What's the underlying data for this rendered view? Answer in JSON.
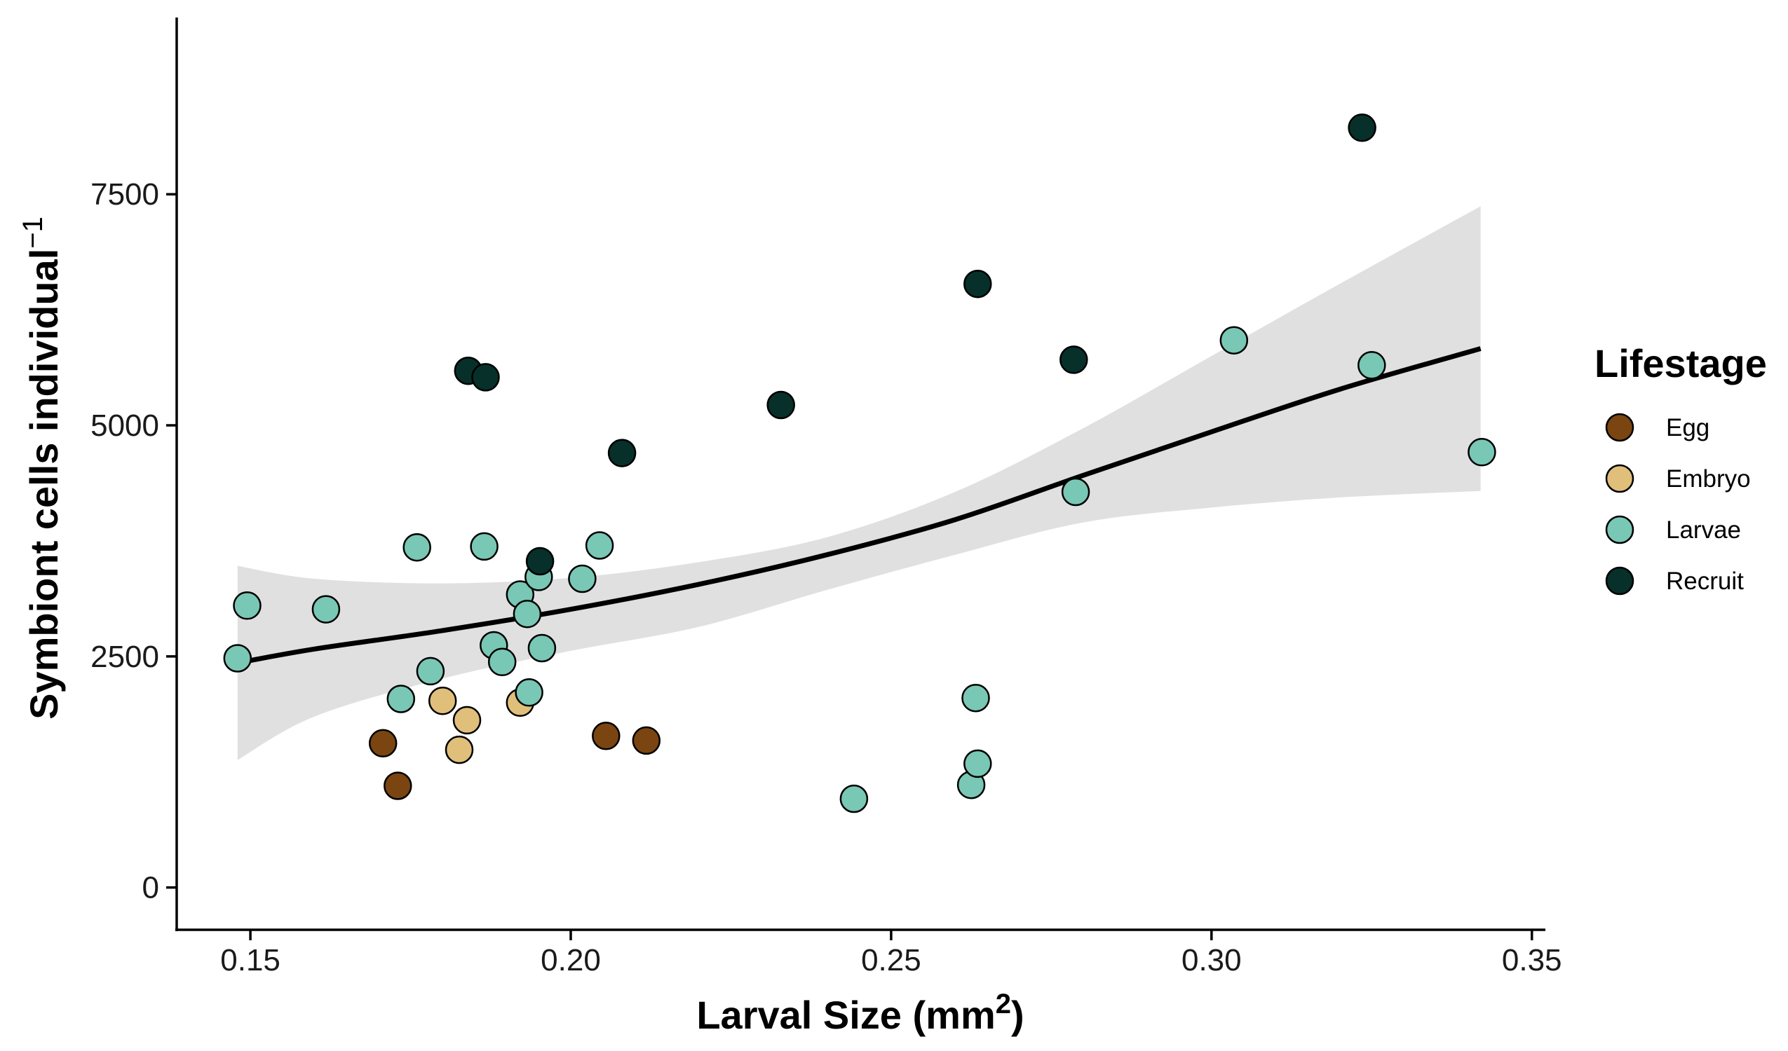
{
  "chart_data": {
    "type": "scatter",
    "title": "",
    "xlabel": "Larval Size (mm",
    "xlabel_sup": "2",
    "xlabel_end": ")",
    "ylabel": "Symbiont cells individual",
    "ylabel_sup": "−1",
    "xlim": [
      0.1385,
      0.352
    ],
    "ylim": [
      -450,
      9450
    ],
    "xticks": [
      0.15,
      0.2,
      0.25,
      0.3,
      0.35
    ],
    "xtick_labels": [
      "0.15",
      "0.20",
      "0.25",
      "0.30",
      "0.35"
    ],
    "yticks": [
      0,
      2500,
      5000,
      7500
    ],
    "ytick_labels": [
      "0",
      "2500",
      "5000",
      "7500"
    ],
    "grid": false,
    "legend": {
      "title": "Lifestage",
      "placement": "right",
      "entries": [
        {
          "name": "Egg",
          "color": "#7a4510"
        },
        {
          "name": "Embryo",
          "color": "#dfbf7a"
        },
        {
          "name": "Larvae",
          "color": "#79c7b5"
        },
        {
          "name": "Recruit",
          "color": "#07302a"
        }
      ]
    },
    "series": [
      {
        "name": "Egg",
        "color": "#7a4510",
        "points": [
          [
            0.1707,
            1560
          ],
          [
            0.173,
            1100
          ],
          [
            0.2055,
            1640
          ],
          [
            0.2118,
            1590
          ]
        ]
      },
      {
        "name": "Embryo",
        "color": "#dfbf7a",
        "points": [
          [
            0.18,
            2020
          ],
          [
            0.1838,
            1810
          ],
          [
            0.1826,
            1490
          ],
          [
            0.1921,
            2000
          ]
        ]
      },
      {
        "name": "Larvae",
        "color": "#79c7b5",
        "points": [
          [
            0.1495,
            3050
          ],
          [
            0.148,
            2480
          ],
          [
            0.1618,
            3010
          ],
          [
            0.176,
            3680
          ],
          [
            0.1735,
            2040
          ],
          [
            0.1781,
            2340
          ],
          [
            0.1865,
            3690
          ],
          [
            0.188,
            2620
          ],
          [
            0.1893,
            2440
          ],
          [
            0.1921,
            3170
          ],
          [
            0.1932,
            2960
          ],
          [
            0.1935,
            2110
          ],
          [
            0.195,
            3360
          ],
          [
            0.1955,
            2590
          ],
          [
            0.2018,
            3340
          ],
          [
            0.2045,
            3700
          ],
          [
            0.2442,
            960
          ],
          [
            0.2625,
            1110
          ],
          [
            0.2632,
            2050
          ],
          [
            0.2635,
            1340
          ],
          [
            0.2788,
            4280
          ],
          [
            0.3035,
            5920
          ],
          [
            0.325,
            5650
          ],
          [
            0.3422,
            4710
          ]
        ]
      },
      {
        "name": "Recruit",
        "color": "#07302a",
        "points": [
          [
            0.184,
            5590
          ],
          [
            0.1867,
            5520
          ],
          [
            0.1952,
            3530
          ],
          [
            0.208,
            4700
          ],
          [
            0.2328,
            5220
          ],
          [
            0.2635,
            6530
          ],
          [
            0.2785,
            5710
          ],
          [
            0.3235,
            8220
          ]
        ]
      }
    ],
    "fit": {
      "color": "#000000",
      "ci_color": "#e0e0e0",
      "line": [
        [
          0.148,
          2430
        ],
        [
          0.16,
          2580
        ],
        [
          0.18,
          2780
        ],
        [
          0.2,
          3010
        ],
        [
          0.22,
          3280
        ],
        [
          0.24,
          3600
        ],
        [
          0.26,
          3980
        ],
        [
          0.28,
          4460
        ],
        [
          0.3,
          4930
        ],
        [
          0.32,
          5390
        ],
        [
          0.342,
          5830
        ]
      ],
      "upper": [
        [
          0.148,
          3480
        ],
        [
          0.16,
          3340
        ],
        [
          0.18,
          3290
        ],
        [
          0.2,
          3350
        ],
        [
          0.22,
          3520
        ],
        [
          0.24,
          3790
        ],
        [
          0.26,
          4280
        ],
        [
          0.28,
          4970
        ],
        [
          0.3,
          5750
        ],
        [
          0.32,
          6530
        ],
        [
          0.342,
          7370
        ]
      ],
      "lower": [
        [
          0.148,
          1380
        ],
        [
          0.16,
          1850
        ],
        [
          0.18,
          2260
        ],
        [
          0.2,
          2560
        ],
        [
          0.22,
          2820
        ],
        [
          0.24,
          3220
        ],
        [
          0.26,
          3600
        ],
        [
          0.28,
          3950
        ],
        [
          0.3,
          4110
        ],
        [
          0.32,
          4220
        ],
        [
          0.342,
          4290
        ]
      ]
    }
  }
}
